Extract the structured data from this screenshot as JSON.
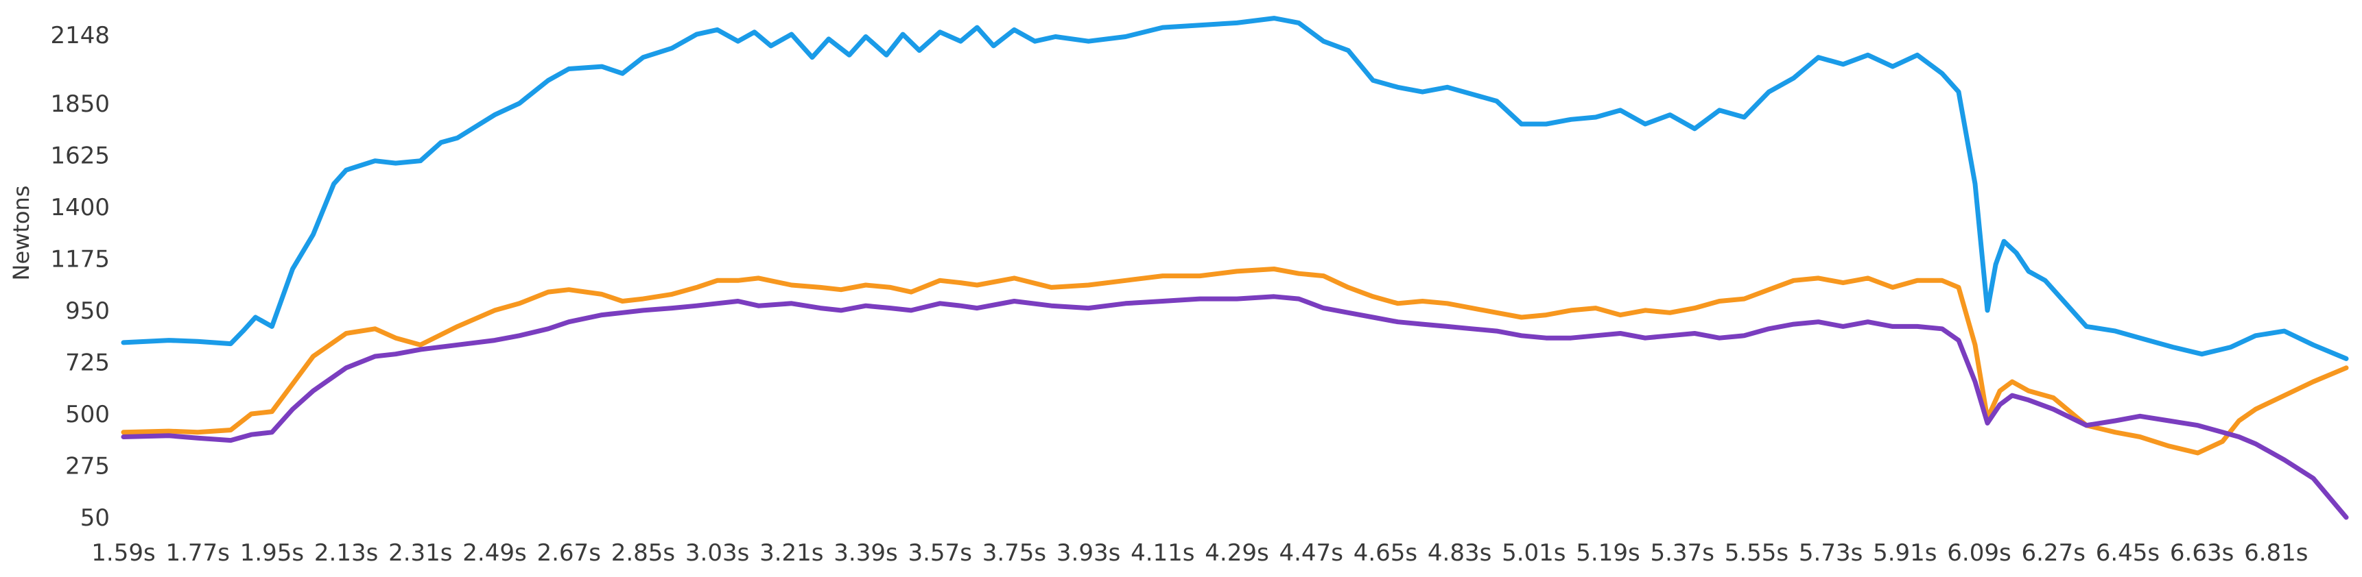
{
  "chart_data": {
    "type": "line",
    "ylabel": "Newtons",
    "xlabel": "",
    "ylim": [
      50,
      2210
    ],
    "xlim": [
      1.59,
      6.98
    ],
    "yticks": [
      50,
      275,
      500,
      725,
      950,
      1175,
      1400,
      1625,
      1850,
      2148
    ],
    "xtick_labels": [
      "1.59s",
      "1.77s",
      "1.95s",
      "2.13s",
      "2.31s",
      "2.49s",
      "2.67s",
      "2.85s",
      "3.03s",
      "3.21s",
      "3.39s",
      "3.57s",
      "3.75s",
      "3.93s",
      "4.11s",
      "4.29s",
      "4.47s",
      "4.65s",
      "4.83s",
      "5.01s",
      "5.19s",
      "5.37s",
      "5.55s",
      "5.73s",
      "5.91s",
      "6.09s",
      "6.27s",
      "6.45s",
      "6.63s",
      "6.81s"
    ],
    "xtick_values": [
      1.59,
      1.77,
      1.95,
      2.13,
      2.31,
      2.49,
      2.67,
      2.85,
      3.03,
      3.21,
      3.39,
      3.57,
      3.75,
      3.93,
      4.11,
      4.29,
      4.47,
      4.65,
      4.83,
      5.01,
      5.19,
      5.37,
      5.55,
      5.73,
      5.91,
      6.09,
      6.27,
      6.45,
      6.63,
      6.81
    ],
    "grid": false,
    "series": [
      {
        "color": "#1a9be8",
        "x": [
          1.59,
          1.7,
          1.77,
          1.85,
          1.88,
          1.91,
          1.93,
          1.95,
          2.0,
          2.05,
          2.1,
          2.13,
          2.2,
          2.25,
          2.31,
          2.36,
          2.4,
          2.49,
          2.55,
          2.62,
          2.67,
          2.75,
          2.8,
          2.85,
          2.92,
          2.98,
          3.03,
          3.08,
          3.12,
          3.16,
          3.21,
          3.26,
          3.3,
          3.35,
          3.39,
          3.44,
          3.48,
          3.52,
          3.57,
          3.62,
          3.66,
          3.7,
          3.75,
          3.8,
          3.85,
          3.93,
          4.02,
          4.11,
          4.2,
          4.29,
          4.38,
          4.44,
          4.5,
          4.56,
          4.62,
          4.68,
          4.74,
          4.8,
          4.86,
          4.92,
          4.98,
          5.04,
          5.1,
          5.16,
          5.22,
          5.28,
          5.34,
          5.4,
          5.46,
          5.52,
          5.58,
          5.64,
          5.7,
          5.76,
          5.82,
          5.88,
          5.94,
          6.0,
          6.04,
          6.08,
          6.11,
          6.13,
          6.15,
          6.18,
          6.21,
          6.25,
          6.3,
          6.35,
          6.42,
          6.48,
          6.56,
          6.63,
          6.7,
          6.76,
          6.83,
          6.9,
          6.98
        ],
        "y": [
          810,
          820,
          815,
          805,
          860,
          920,
          900,
          880,
          1130,
          1280,
          1500,
          1560,
          1600,
          1590,
          1600,
          1680,
          1700,
          1800,
          1850,
          1950,
          2000,
          2010,
          1980,
          2050,
          2090,
          2150,
          2170,
          2120,
          2160,
          2100,
          2150,
          2050,
          2130,
          2060,
          2140,
          2060,
          2150,
          2080,
          2160,
          2120,
          2180,
          2100,
          2170,
          2120,
          2140,
          2120,
          2140,
          2180,
          2190,
          2200,
          2220,
          2200,
          2120,
          2080,
          1950,
          1920,
          1900,
          1920,
          1890,
          1860,
          1760,
          1760,
          1780,
          1790,
          1820,
          1760,
          1800,
          1740,
          1820,
          1790,
          1900,
          1960,
          2050,
          2020,
          2060,
          2010,
          2060,
          1980,
          1900,
          1500,
          950,
          1150,
          1250,
          1200,
          1120,
          1080,
          980,
          880,
          860,
          830,
          790,
          760,
          790,
          840,
          860,
          800,
          740
        ]
      },
      {
        "color": "#f7971e",
        "x": [
          1.59,
          1.7,
          1.77,
          1.85,
          1.9,
          1.95,
          2.0,
          2.05,
          2.13,
          2.2,
          2.25,
          2.31,
          2.4,
          2.49,
          2.55,
          2.62,
          2.67,
          2.75,
          2.8,
          2.85,
          2.92,
          2.98,
          3.03,
          3.08,
          3.13,
          3.21,
          3.28,
          3.33,
          3.39,
          3.45,
          3.5,
          3.57,
          3.62,
          3.66,
          3.75,
          3.84,
          3.93,
          4.02,
          4.11,
          4.2,
          4.29,
          4.38,
          4.44,
          4.5,
          4.56,
          4.62,
          4.68,
          4.74,
          4.8,
          4.86,
          4.92,
          4.98,
          5.04,
          5.1,
          5.16,
          5.22,
          5.28,
          5.34,
          5.4,
          5.46,
          5.52,
          5.58,
          5.64,
          5.7,
          5.76,
          5.82,
          5.88,
          5.94,
          6.0,
          6.04,
          6.08,
          6.11,
          6.14,
          6.17,
          6.21,
          6.27,
          6.35,
          6.42,
          6.48,
          6.55,
          6.62,
          6.68,
          6.72,
          6.76,
          6.83,
          6.9,
          6.98
        ],
        "y": [
          420,
          425,
          420,
          430,
          500,
          510,
          630,
          750,
          850,
          870,
          830,
          800,
          880,
          950,
          980,
          1030,
          1040,
          1020,
          990,
          1000,
          1020,
          1050,
          1080,
          1080,
          1090,
          1060,
          1050,
          1040,
          1060,
          1050,
          1030,
          1080,
          1070,
          1060,
          1090,
          1050,
          1060,
          1080,
          1100,
          1100,
          1120,
          1130,
          1110,
          1100,
          1050,
          1010,
          980,
          990,
          980,
          960,
          940,
          920,
          930,
          950,
          960,
          930,
          950,
          940,
          960,
          990,
          1000,
          1040,
          1080,
          1090,
          1070,
          1090,
          1050,
          1080,
          1080,
          1050,
          800,
          480,
          600,
          640,
          600,
          570,
          450,
          420,
          400,
          360,
          330,
          380,
          470,
          520,
          580,
          640,
          700
        ]
      },
      {
        "color": "#7a3dbf",
        "x": [
          1.59,
          1.7,
          1.77,
          1.85,
          1.9,
          1.95,
          2.0,
          2.05,
          2.13,
          2.2,
          2.25,
          2.31,
          2.4,
          2.49,
          2.55,
          2.62,
          2.67,
          2.75,
          2.8,
          2.85,
          2.92,
          2.98,
          3.03,
          3.08,
          3.13,
          3.21,
          3.28,
          3.33,
          3.39,
          3.45,
          3.5,
          3.57,
          3.62,
          3.66,
          3.75,
          3.84,
          3.93,
          4.02,
          4.11,
          4.2,
          4.29,
          4.38,
          4.44,
          4.5,
          4.56,
          4.62,
          4.68,
          4.74,
          4.8,
          4.86,
          4.92,
          4.98,
          5.04,
          5.1,
          5.16,
          5.22,
          5.28,
          5.34,
          5.4,
          5.46,
          5.52,
          5.58,
          5.64,
          5.7,
          5.76,
          5.82,
          5.88,
          5.94,
          6.0,
          6.04,
          6.08,
          6.11,
          6.14,
          6.17,
          6.21,
          6.27,
          6.35,
          6.42,
          6.48,
          6.55,
          6.62,
          6.68,
          6.72,
          6.76,
          6.83,
          6.9,
          6.98
        ],
        "y": [
          400,
          405,
          395,
          385,
          410,
          420,
          520,
          600,
          700,
          750,
          760,
          780,
          800,
          820,
          840,
          870,
          900,
          930,
          940,
          950,
          960,
          970,
          980,
          990,
          970,
          980,
          960,
          950,
          970,
          960,
          950,
          980,
          970,
          960,
          990,
          970,
          960,
          980,
          990,
          1000,
          1000,
          1010,
          1000,
          960,
          940,
          920,
          900,
          890,
          880,
          870,
          860,
          840,
          830,
          830,
          840,
          850,
          830,
          840,
          850,
          830,
          840,
          870,
          890,
          900,
          880,
          900,
          880,
          880,
          870,
          820,
          640,
          460,
          540,
          580,
          560,
          520,
          450,
          470,
          490,
          470,
          450,
          420,
          400,
          370,
          300,
          220,
          50
        ]
      }
    ]
  }
}
